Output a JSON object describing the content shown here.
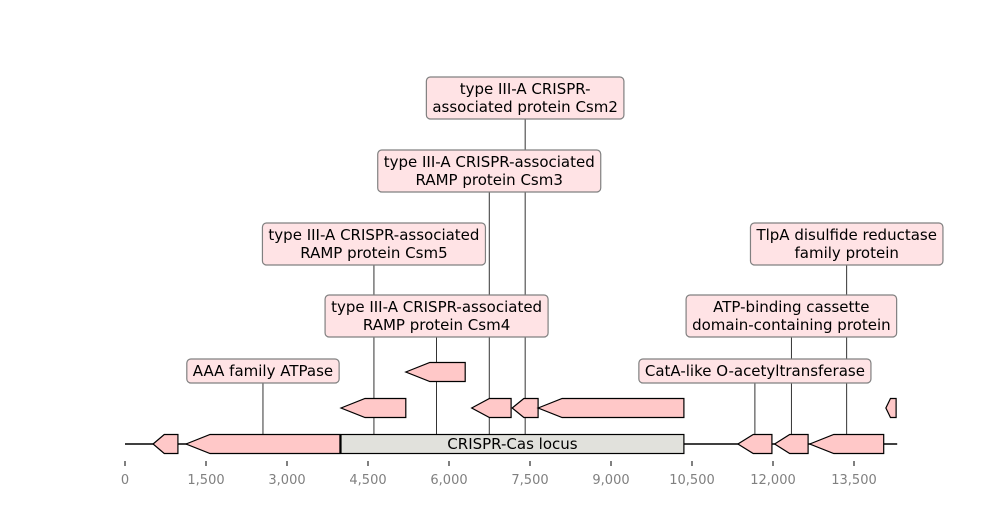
{
  "axis": {
    "ticks": [
      {
        "value": 0,
        "label": "0"
      },
      {
        "value": 1500,
        "label": "1,500"
      },
      {
        "value": 3000,
        "label": "3,000"
      },
      {
        "value": 4500,
        "label": "4,500"
      },
      {
        "value": 6000,
        "label": "6,000"
      },
      {
        "value": 7500,
        "label": "7,500"
      },
      {
        "value": 9000,
        "label": "9,000"
      },
      {
        "value": 10500,
        "label": "10,500"
      },
      {
        "value": 12000,
        "label": "12,000"
      },
      {
        "value": 13500,
        "label": "13,500"
      }
    ],
    "range": [
      0,
      14300
    ]
  },
  "locus": {
    "label": "CRISPR-Cas locus",
    "start": 4000,
    "end": 10350
  },
  "genes": [
    {
      "start": 520,
      "end": 980,
      "strand": -1,
      "row": 0
    },
    {
      "start": 1130,
      "end": 3980,
      "strand": -1,
      "row": 0
    },
    {
      "start": 11350,
      "end": 11980,
      "strand": -1,
      "row": 0
    },
    {
      "start": 12030,
      "end": 12650,
      "strand": -1,
      "row": 0
    },
    {
      "start": 12680,
      "end": 14050,
      "strand": -1,
      "row": 0
    },
    {
      "start": 4000,
      "end": 5200,
      "strand": -1,
      "row": 1
    },
    {
      "start": 6420,
      "end": 7150,
      "strand": -1,
      "row": 1
    },
    {
      "start": 7170,
      "end": 7650,
      "strand": -1,
      "row": 1
    },
    {
      "start": 7650,
      "end": 10350,
      "strand": -1,
      "row": 1
    },
    {
      "start": 14090,
      "end": 14280,
      "strand": -1,
      "row": 1
    },
    {
      "start": 5200,
      "end": 6300,
      "strand": -1,
      "row": 2
    }
  ],
  "annotations": [
    {
      "text": [
        "AAA family ATPase"
      ],
      "x": 2555,
      "level": 0
    },
    {
      "text": [
        "type III-A CRISPR-associated",
        "RAMP protein Csm5"
      ],
      "x": 4610,
      "level": 2
    },
    {
      "text": [
        "type III-A CRISPR-associated",
        "RAMP protein Csm4"
      ],
      "x": 5770,
      "level": 1
    },
    {
      "text": [
        "type III-A CRISPR-associated",
        "RAMP protein Csm3"
      ],
      "x": 6745,
      "level": 3
    },
    {
      "text": [
        "type III-A CRISPR-",
        "associated protein Csm2"
      ],
      "x": 7410,
      "level": 4
    },
    {
      "text": [
        "CatA-like O-acetyltransferase"
      ],
      "x": 11665,
      "level": 0
    },
    {
      "text": [
        "ATP-binding cassette",
        "domain-containing protein"
      ],
      "x": 12340,
      "level": 1
    },
    {
      "text": [
        "TlpA disulfide reductase",
        "family protein"
      ],
      "x": 13365,
      "level": 2
    }
  ],
  "colors": {
    "gene_fill": "#ffc8c8",
    "locus_fill": "#e1e1dc",
    "label_fill": "#ffe3e5",
    "label_border": "#808080",
    "tick_text": "#808080"
  }
}
